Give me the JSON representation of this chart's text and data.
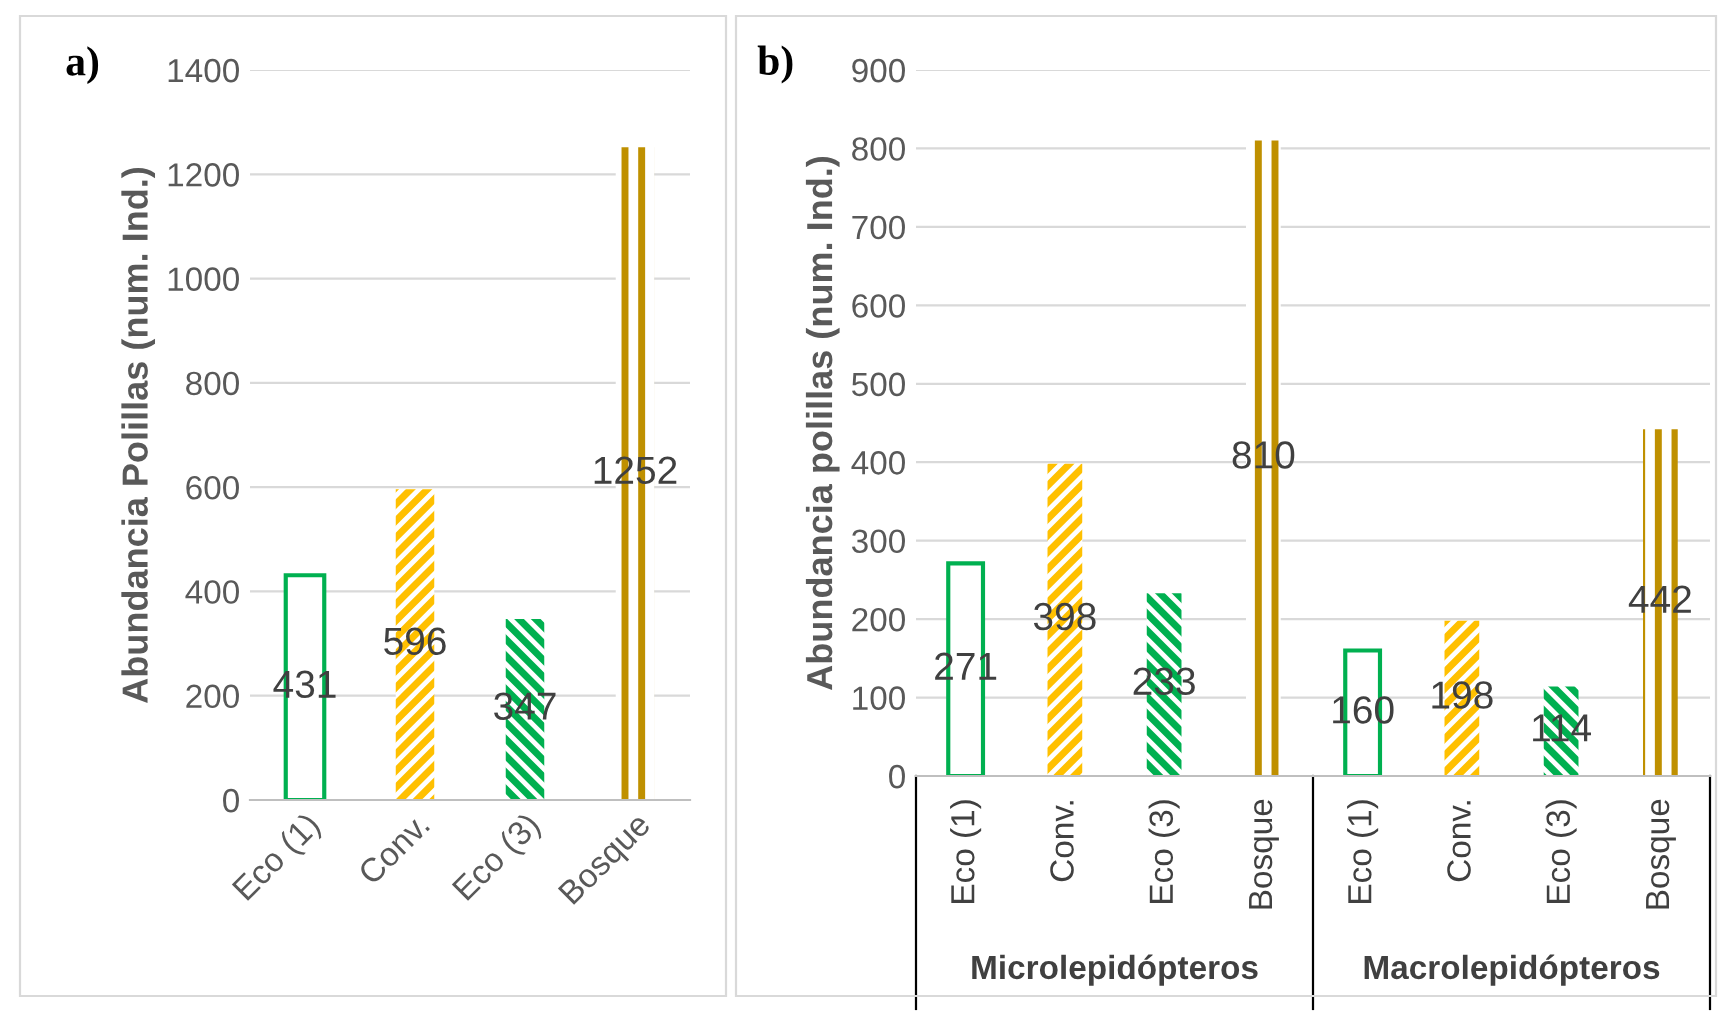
{
  "chart_data": [
    {
      "type": "bar",
      "title": "a)",
      "ylabel": "Abundancia Polillas (num. Ind.)",
      "categories": [
        "Eco (1)",
        "Conv.",
        "Eco (3)",
        "Bosque"
      ],
      "values": [
        431,
        596,
        347,
        1252
      ],
      "colors": [
        "#00b050",
        "#ffc000",
        "#00b050",
        "#bf9000"
      ],
      "ylim": [
        0,
        1400
      ],
      "yticks": [
        0,
        200,
        400,
        600,
        800,
        1000,
        1200,
        1400
      ],
      "grid": "y",
      "data_labels": true
    },
    {
      "type": "bar",
      "title": "b)",
      "ylabel": "Abundancia polillas (num. Ind.)",
      "categories": [
        "Eco (1)",
        "Conv.",
        "Eco (3)",
        "Bosque",
        "Eco (1)",
        "Conv.",
        "Eco (3)",
        "Bosque"
      ],
      "values": [
        271,
        398,
        233,
        810,
        160,
        198,
        114,
        442
      ],
      "colors": [
        "#00b050",
        "#ffc000",
        "#00b050",
        "#bf9000",
        "#00b050",
        "#ffc000",
        "#00b050",
        "#bf9000"
      ],
      "ylim": [
        0,
        900
      ],
      "yticks": [
        0,
        100,
        200,
        300,
        400,
        500,
        600,
        700,
        800,
        900
      ],
      "grid": "y",
      "data_labels": true,
      "annotations": [
        "Microlepidópteros",
        "Macrolepidópteros"
      ]
    }
  ]
}
